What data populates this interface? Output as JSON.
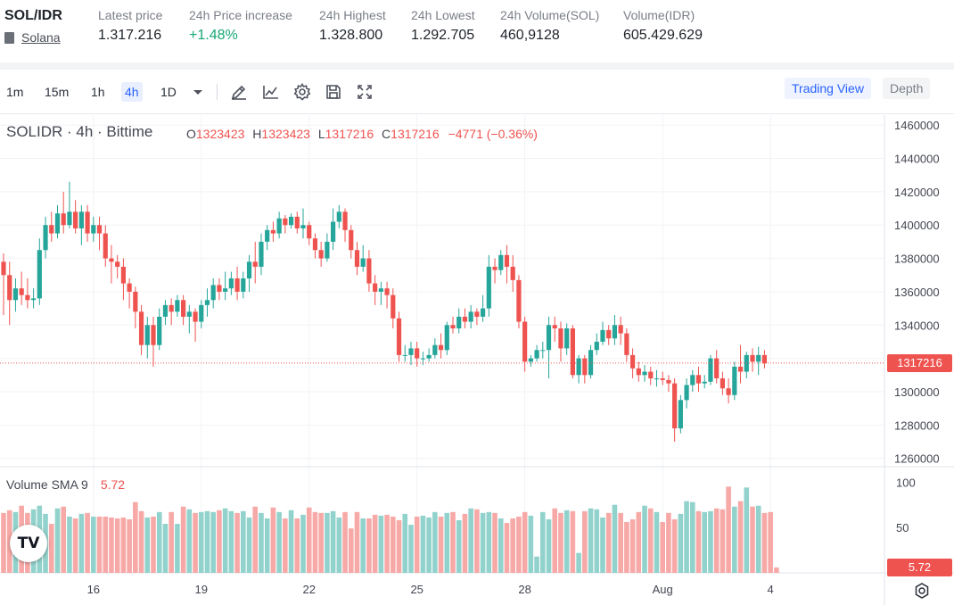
{
  "ticker": {
    "pair": "SOL/IDR",
    "coin_link": "Solana",
    "stats": [
      {
        "label": "Latest price",
        "value": "1.317.216"
      },
      {
        "label": "24h Price increase",
        "value": "+1.48%"
      },
      {
        "label": "24h Highest",
        "value": "1.328.800"
      },
      {
        "label": "24h Lowest",
        "value": "1.292.705"
      },
      {
        "label": "24h Volume(SOL)",
        "value": "460,9128"
      },
      {
        "label": "Volume(IDR)",
        "value": "605.429.629"
      }
    ]
  },
  "toolbar": {
    "timeframes": [
      "1m",
      "15m",
      "1h",
      "4h",
      "1D"
    ],
    "active_timeframe": "4h",
    "icons": [
      "chevron-down-icon",
      "pencil-icon",
      "indicator-icon",
      "gear-icon",
      "save-icon",
      "fullscreen-icon"
    ],
    "trading_view_label": "Trading View",
    "depth_label": "Depth"
  },
  "legend": {
    "symbol": "SOLIDR · 4h · Bittime",
    "open_key": "O",
    "open": "1323423",
    "high_key": "H",
    "high": "1323423",
    "low_key": "L",
    "low": "1317216",
    "close_key": "C",
    "close": "1317216",
    "change": "−4771 (−0.36%)",
    "volume_label": "Volume SMA 9",
    "volume_value": "5.72"
  },
  "colors": {
    "up": "#26a69a",
    "down": "#ef5350",
    "up_volume": "#92d2cc",
    "down_volume": "#f7a9a7"
  },
  "chart_data": {
    "type": "candlestick",
    "price_axis": {
      "ticks": [
        1260000,
        1280000,
        1300000,
        1320000,
        1340000,
        1360000,
        1380000,
        1400000,
        1420000,
        1440000,
        1460000
      ],
      "tick_labels": [
        "1260000",
        "1280000",
        "1300000",
        "1320000",
        "1340000",
        "1360000",
        "1380000",
        "1400000",
        "1420000",
        "1440000",
        "1460000"
      ],
      "range": [
        1255000,
        1466000
      ]
    },
    "volume_axis": {
      "ticks": [
        50,
        100
      ],
      "tick_labels": [
        "50",
        "100"
      ],
      "range": [
        0,
        115
      ]
    },
    "time_axis": {
      "labels": [
        "16",
        "19",
        "22",
        "25",
        "28",
        "Aug",
        "4"
      ],
      "label_bar_index": [
        15,
        33,
        51,
        69,
        87,
        110,
        128
      ]
    },
    "last_price": {
      "value": 1317216,
      "label": "1317216"
    },
    "last_volume": {
      "value": 5.72,
      "label": "5.72"
    },
    "bars_raw": "1378,1370,1383,1346|1370,1355,1378,1340|1355,1362,1368,1348|1362,1358,1372,1352|1358,1355,1368,1350|1355,1356,1362,1350|1356,1385,1392,1352|1385,1400,1405,1380|1400,1395,1408,1390|1395,1407,1412,1392|1407,1400,1420,1395|1400,1408,1426,1398|1408,1398,1415,1395|1398,1408,1412,1388|1408,1395,1412,1390|1395,1400,1405,1390|1400,1395,1405,1385|1395,1380,1400,1375|1380,1378,1388,1365|1378,1375,1382,1368|1375,1365,1380,1355|1365,1360,1368,1350|1360,1348,1363,1338|1348,1328,1352,1322|1328,1340,1345,1320|1340,1328,1345,1315|1328,1345,1350,1325|1345,1352,1355,1340|1352,1348,1356,1340|1348,1355,1358,1345|1355,1345,1358,1340|1345,1348,1352,1335|1348,1342,1350,1330|1342,1352,1355,1338|1352,1355,1362,1345|1355,1364,1368,1350|1364,1360,1368,1355|1360,1362,1372,1355|1362,1368,1372,1358|1368,1360,1375,1355|1360,1368,1372,1356|1368,1378,1382,1360|1378,1375,1390,1365|1375,1390,1395,1370|1390,1397,1400,1385|1397,1395,1402,1390|1395,1404,1408,1392|1404,1400,1406,1395|1400,1405,1407,1398|1405,1398,1408,1395|1398,1400,1410,1392|1400,1392,1402,1388|1392,1385,1395,1380|1385,1380,1390,1375|1380,1390,1395,1378|1390,1402,1410,1385|1402,1408,1412,1398|1408,1397,1410,1390|1397,1385,1400,1380|1385,1375,1390,1370|1375,1380,1388,1372|1380,1365,1385,1360|1365,1360,1370,1352|1360,1362,1366,1352|1362,1358,1366,1350|1358,1344,1362,1338|1344,1322,1348,1318|1322,1322,1328,1318|1322,1326,1330,1316|1326,1320,1330,1315|1320,1320,1324,1316|1320,1322,1326,1318|1322,1328,1332,1320|1328,1325,1335,1320|1325,1340,1342,1322|1340,1338,1345,1335|1338,1345,1350,1335|1345,1342,1350,1338|1342,1348,1352,1338|1348,1345,1350,1340|1345,1350,1358,1342|1350,1375,1382,1345|1375,1373,1380,1365|1373,1382,1385,1370|1382,1375,1388,1365|1375,1367,1382,1360|1367,1342,1370,1338|1342,1318,1345,1312|1318,1320,1322,1315|1320,1325,1328,1318|1325,1325,1330,1320|1325,1340,1345,1308|1340,1338,1345,1330|1338,1326,1342,1318|1326,1338,1341,1322|1338,1310,1340,1308|1310,1320,1322,1305|1320,1310,1322,1305|1310,1325,1328,1308|1325,1330,1335,1322|1330,1337,1342,1328|1337,1332,1340,1328|1332,1340,1346,1328|1340,1335,1345,1328|1335,1322,1338,1318|1322,1314,1326,1308|1314,1310,1318,1306|1310,1312,1316,1306|1312,1308,1315,1304|1308,1308,1313,1303|1308,1307,1312,1304|1307,1305,1310,1300|1305,1278,1308,1270|1278,1295,1298,1275|1295,1304,1308,1290|1304,1310,1313,1300|1310,1305,1315,1300|1305,1306,1310,1302|1306,1320,1322,1304|1320,1308,1325,1305|1308,1302,1312,1298|1302,1298,1308,1293|1298,1315,1318,1295|1315,1312,1328,1305|1312,1322,1324,1308|1322,1318,1326,1312|1318,1322,1327,1310|1322,1317,1325,1314",
    "volumes": [
      66,
      69,
      67,
      74,
      66,
      70,
      74,
      65,
      54,
      71,
      73,
      62,
      60,
      65,
      66,
      62,
      62,
      62,
      61,
      60,
      61,
      59,
      78,
      68,
      61,
      62,
      67,
      54,
      67,
      54,
      73,
      70,
      66,
      67,
      68,
      67,
      69,
      71,
      68,
      66,
      68,
      61,
      73,
      66,
      60,
      72,
      67,
      60,
      69,
      60,
      64,
      72,
      67,
      66,
      66,
      68,
      61,
      67,
      49,
      67,
      60,
      60,
      64,
      63,
      64,
      62,
      58,
      65,
      53,
      62,
      63,
      61,
      67,
      62,
      66,
      67,
      58,
      65,
      71,
      70,
      66,
      67,
      66,
      60,
      55,
      60,
      62,
      67,
      63,
      18,
      67,
      59,
      71,
      66,
      69,
      68,
      22,
      68,
      71,
      70,
      61,
      66,
      75,
      66,
      56,
      59,
      67,
      74,
      71,
      67,
      56,
      66,
      59,
      65,
      79,
      78,
      68,
      67,
      68,
      71,
      70,
      95,
      73,
      79,
      94,
      73,
      74,
      66,
      67,
      6
    ]
  },
  "footer": {
    "settings_icon": "gear-icon",
    "logo": "TV"
  }
}
